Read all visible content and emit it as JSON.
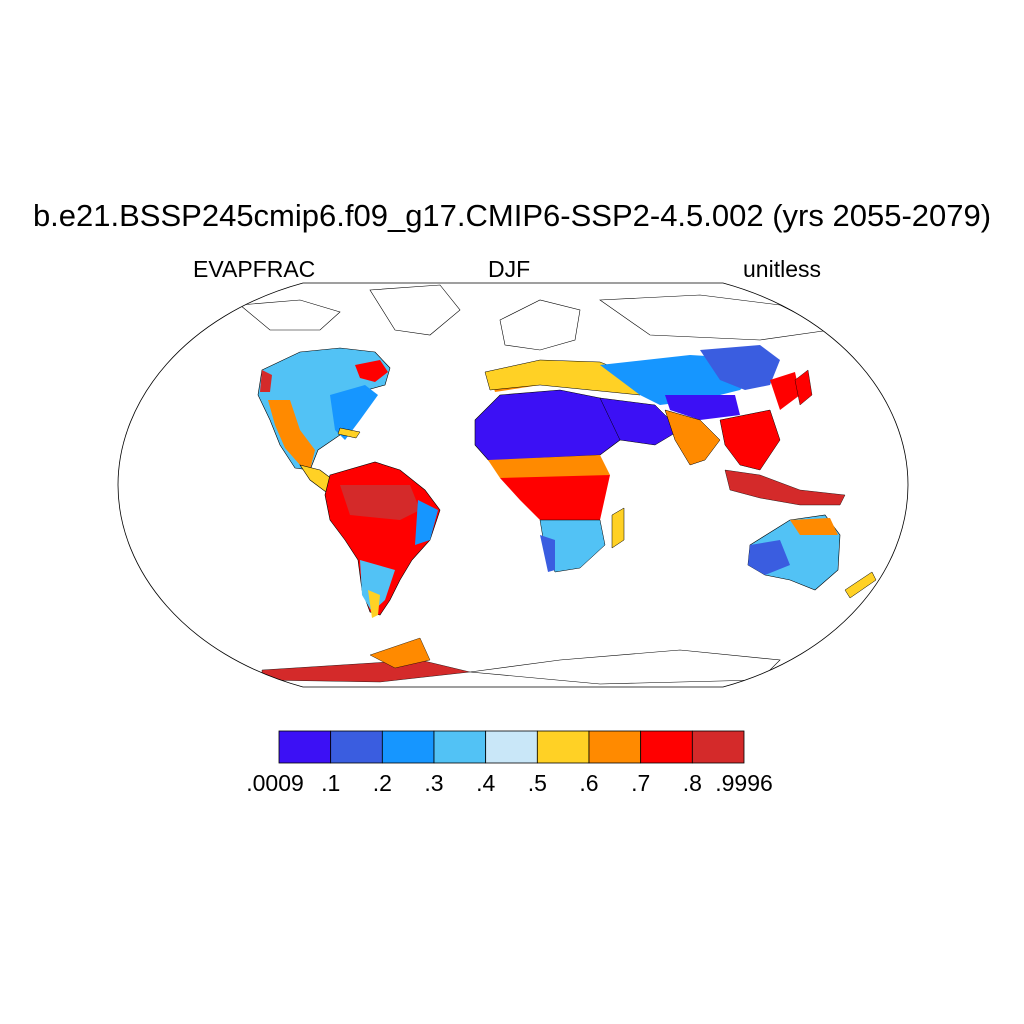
{
  "title": "b.e21.BSSP245cmip6.f09_g17.CMIP6-SSP2-4.5.002 (yrs 2055-2079)",
  "left_string": "EVAPFRAC",
  "center_string": "DJF",
  "right_string": "unitless",
  "colorbar": {
    "colors": [
      "#3c10f5",
      "#3a5de0",
      "#1696ff",
      "#52c2f5",
      "#c9e7f8",
      "#ffd125",
      "#ff8a00",
      "#ff0000",
      "#d42a2a"
    ],
    "labels": [
      ".0009",
      ".1",
      ".2",
      ".3",
      ".4",
      ".5",
      ".6",
      ".7",
      ".8",
      ".9996"
    ]
  }
}
